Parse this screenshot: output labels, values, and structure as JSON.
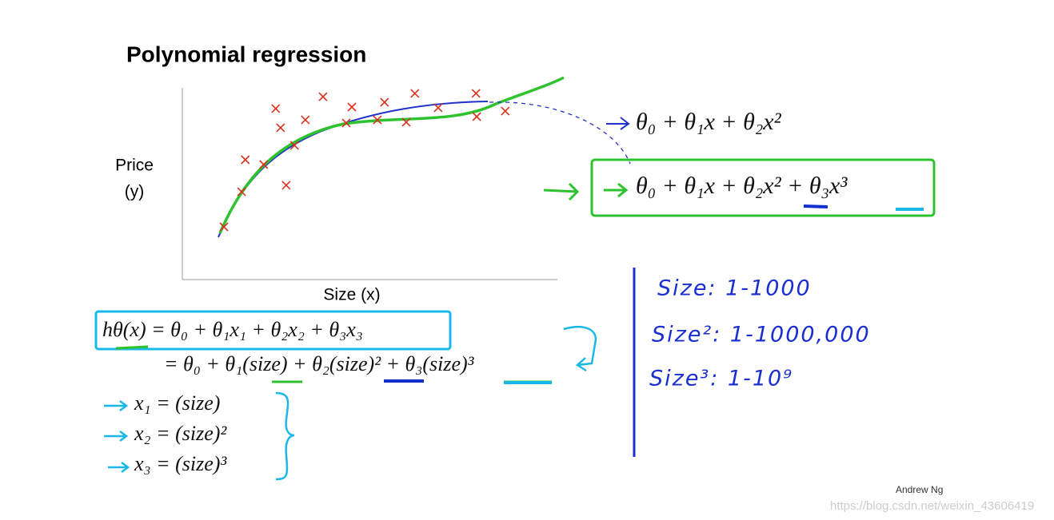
{
  "title": "Polynomial regression",
  "chart_data": {
    "type": "scatter",
    "y_label": [
      "Price",
      "(y)"
    ],
    "x_label": "Size (x)",
    "x": [
      1.11,
      1.58,
      1.68,
      2.17,
      2.77,
      2.49,
      2.62,
      2.99,
      3.28,
      3.75,
      4.37,
      4.52,
      5.2,
      5.39,
      5.97,
      6.2,
      6.82,
      7.83,
      7.85,
      8.61
    ],
    "values": [
      2.75,
      4.58,
      6.25,
      6.0,
      4.92,
      8.92,
      7.92,
      7.0,
      8.33,
      9.54,
      8.17,
      9.0,
      8.33,
      9.25,
      8.21,
      9.71,
      8.96,
      9.71,
      8.5,
      8.79
    ],
    "color": "#d9301e",
    "xlim": [
      0,
      10
    ],
    "ylim": [
      0,
      10
    ]
  },
  "formulas": {
    "quadratic": "θ₀ + θ₁x + θ₂x²",
    "cubic": "θ₀ + θ₁x + θ₂x² + θ₃x³",
    "hypothesis": "hθ(x) = θ₀ + θ₁x₁ + θ₂x₂ + θ₃x₃",
    "expanded": "= θ₀ + θ₁(size) + θ₂(size)² + θ₃(size)³",
    "features": [
      "x₁ = (size)",
      "x₂ = (size)²",
      "x₃ = (size)³"
    ]
  },
  "notes": [
    "Size: 1-1000",
    "Size²: 1-1000,000",
    "Size³: 1-10⁹"
  ],
  "author": "Andrew Ng",
  "watermark": "https://blog.csdn.net/weixin_43606419"
}
